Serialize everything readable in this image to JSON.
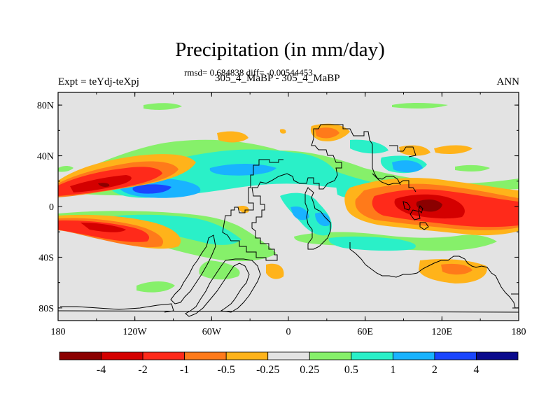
{
  "header": {
    "title": "Precipitation (in mm/day)",
    "stats": "rmsd= 0.684838 diff= -0.00544453",
    "subtitle": "305_4_MaBP - 305_4_MaBP",
    "left_label": "Expt = teYdj-teXpj",
    "right_label": "ANN"
  },
  "axes": {
    "x_ticks": [
      "180",
      "120W",
      "60W",
      "0",
      "60E",
      "120E",
      "180"
    ],
    "y_ticks": [
      "80N",
      "40N",
      "0",
      "40S",
      "80S"
    ]
  },
  "colorbar": {
    "labels": [
      "-4",
      "-2",
      "-1",
      "-0.5",
      "-0.25",
      "0.25",
      "0.5",
      "1",
      "2",
      "4"
    ],
    "colors": [
      "#8b0000",
      "#d40000",
      "#ff2a1a",
      "#ff7a1a",
      "#ffb31a",
      "#e3e3e3",
      "#86f06a",
      "#2af0c8",
      "#19b3ff",
      "#1a46ff",
      "#0a0a8c"
    ]
  },
  "map": {
    "background": "#e3e3e3",
    "coastline_color": "#000000"
  }
}
